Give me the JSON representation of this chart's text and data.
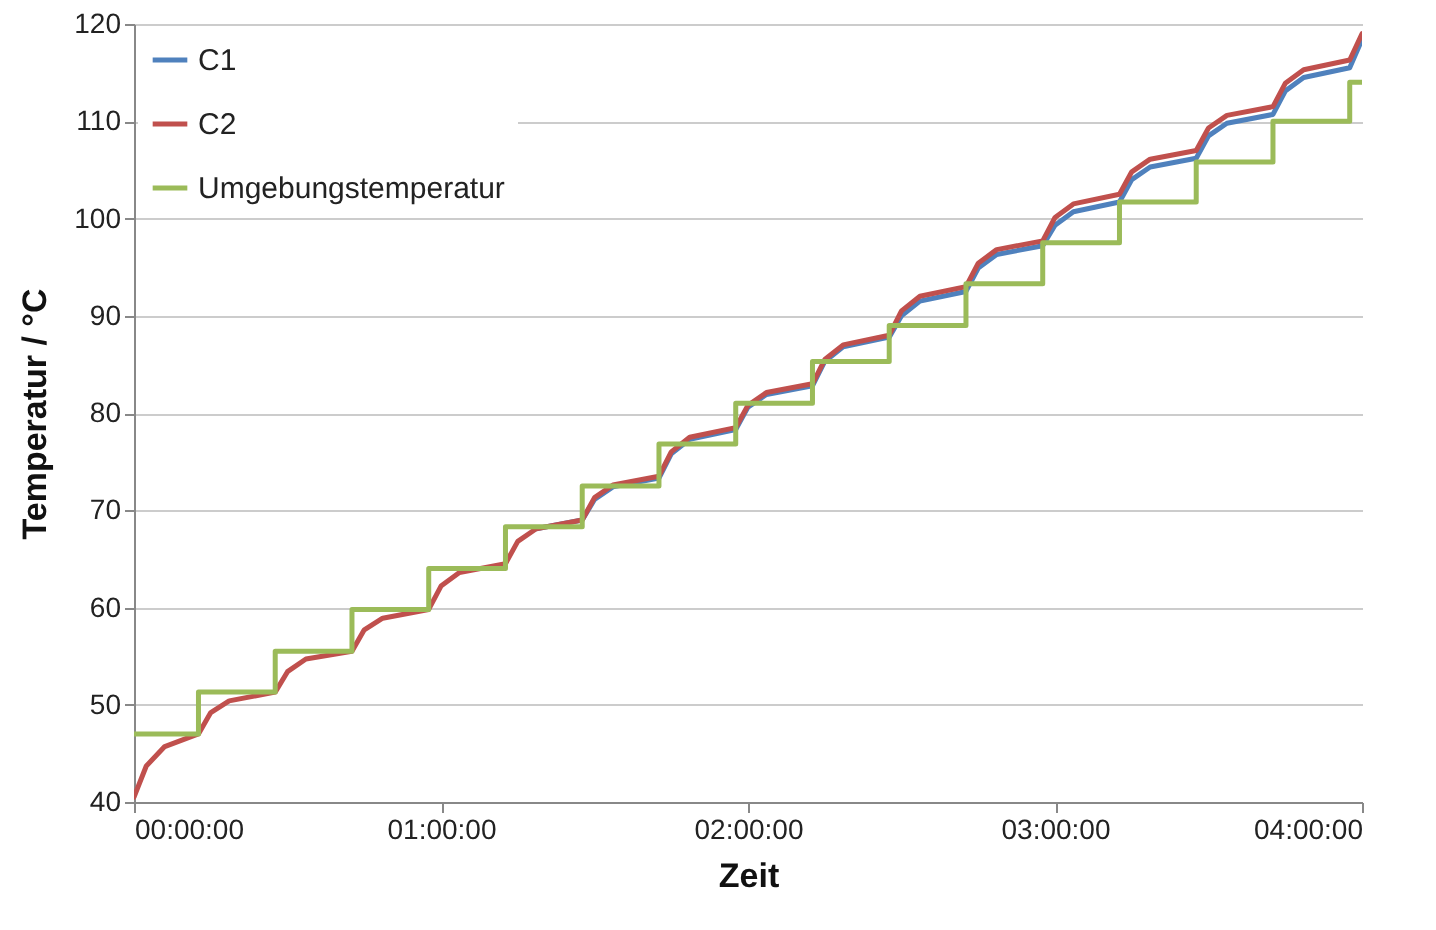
{
  "chart_data": {
    "type": "line",
    "xlabel": "Zeit",
    "ylabel": "Temperatur / °C",
    "xlim": [
      0,
      4
    ],
    "xticks": [
      {
        "value": 0,
        "label": "00:00:00"
      },
      {
        "value": 1,
        "label": "01:00:00"
      },
      {
        "value": 2,
        "label": "02:00:00"
      },
      {
        "value": 3,
        "label": "03:00:00"
      },
      {
        "value": 4,
        "label": "04:00:00"
      }
    ],
    "ylim": [
      40,
      120
    ],
    "yticks": [
      40,
      50,
      60,
      70,
      80,
      90,
      100,
      110,
      120
    ],
    "grid": "y",
    "legend": "top left",
    "series": [
      {
        "name": "C1",
        "color": "#4f81bd",
        "x": [
          1.31,
          1.46,
          1.5,
          1.56,
          1.71,
          1.75,
          1.81,
          1.96,
          2.0,
          2.06,
          2.21,
          2.25,
          2.31,
          2.46,
          2.5,
          2.56,
          2.71,
          2.75,
          2.81,
          2.96,
          3.0,
          3.06,
          3.21,
          3.25,
          3.31,
          3.46,
          3.5,
          3.56,
          3.71,
          3.75,
          3.81,
          3.96,
          4.0
        ],
        "values": [
          68.1,
          69,
          71.1,
          72.4,
          73.3,
          75.8,
          77.3,
          78.3,
          80.6,
          81.9,
          82.8,
          85.3,
          86.8,
          87.8,
          90,
          91.5,
          92.5,
          94.9,
          96.3,
          97.2,
          99.3,
          100.7,
          101.7,
          104,
          105.3,
          106.2,
          108.5,
          109.8,
          110.7,
          113.1,
          114.5,
          115.5,
          118.4
        ]
      },
      {
        "name": "C2",
        "color": "#c0504d",
        "x": [
          0,
          0.04,
          0.1,
          0.21,
          0.25,
          0.31,
          0.46,
          0.5,
          0.56,
          0.71,
          0.75,
          0.81,
          0.96,
          1.0,
          1.06,
          1.21,
          1.25,
          1.31,
          1.46,
          1.5,
          1.56,
          1.71,
          1.75,
          1.81,
          1.96,
          2.0,
          2.06,
          2.21,
          2.25,
          2.31,
          2.46,
          2.5,
          2.56,
          2.71,
          2.75,
          2.81,
          2.96,
          3.0,
          3.06,
          3.21,
          3.25,
          3.31,
          3.46,
          3.5,
          3.56,
          3.71,
          3.75,
          3.81,
          3.96,
          4.0
        ],
        "values": [
          40.5,
          43.7,
          45.7,
          47,
          49.2,
          50.4,
          51.3,
          53.4,
          54.7,
          55.5,
          57.7,
          58.9,
          59.8,
          62.2,
          63.6,
          64.5,
          66.8,
          68.1,
          69,
          71.3,
          72.6,
          73.5,
          76,
          77.5,
          78.5,
          80.8,
          82.1,
          83,
          85.5,
          87,
          88,
          90.5,
          92,
          93,
          95.4,
          96.8,
          97.7,
          100.1,
          101.5,
          102.5,
          104.8,
          106.1,
          107,
          109.3,
          110.6,
          111.5,
          113.9,
          115.3,
          116.3,
          119
        ]
      },
      {
        "name": "Umgebungstemperatur",
        "color": "#9bbb59",
        "type": "step",
        "x": [
          0,
          0.21,
          0.46,
          0.71,
          0.96,
          1.21,
          1.46,
          1.71,
          1.96,
          2.21,
          2.46,
          2.71,
          2.96,
          3.21,
          3.46,
          3.71,
          3.96,
          4.0
        ],
        "values": [
          47,
          51.3,
          55.5,
          59.8,
          64,
          68.3,
          72.5,
          76.8,
          81,
          85.3,
          89,
          93.3,
          97.5,
          101.7,
          105.8,
          110,
          114,
          114
        ]
      }
    ]
  }
}
